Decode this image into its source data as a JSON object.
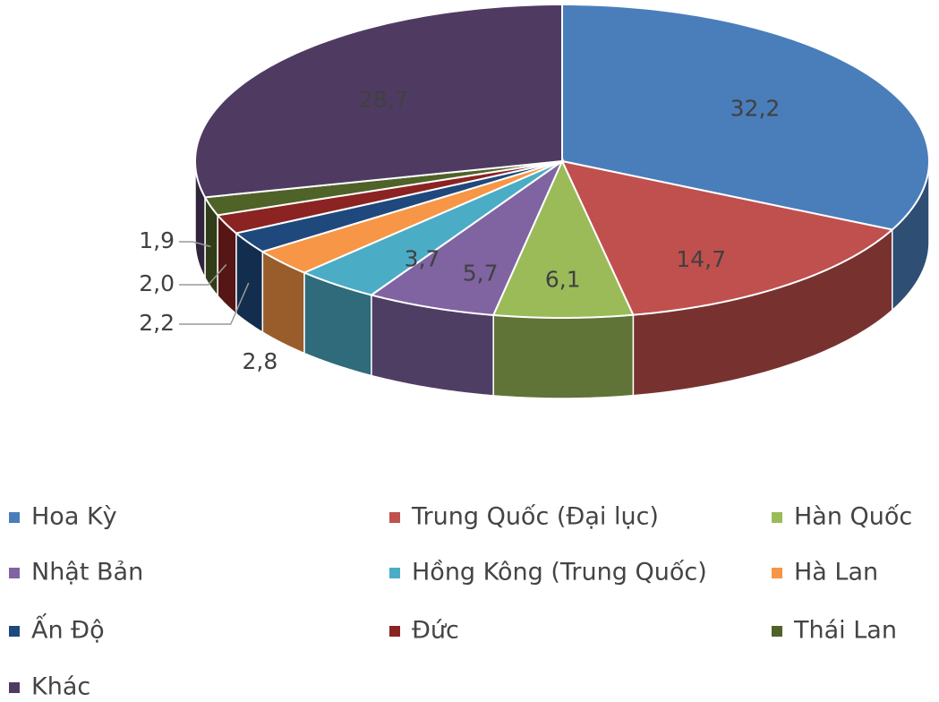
{
  "chart_data": {
    "type": "pie",
    "categories": [
      "Hoa Kỳ",
      "Trung Quốc (Đại lục)",
      "Hàn Quốc",
      "Nhật Bản",
      "Hồng Kông (Trung Quốc)",
      "Hà Lan",
      "Ấn Độ",
      "Đức",
      "Thái Lan",
      "Khác"
    ],
    "values": [
      32.2,
      14.7,
      6.1,
      5.7,
      3.7,
      2.8,
      2.2,
      2.0,
      1.9,
      28.7
    ],
    "value_labels": [
      "32,2",
      "14,7",
      "6,1",
      "5,7",
      "3,7",
      "2,8",
      "2,2",
      "2,0",
      "1,9",
      "28,7"
    ],
    "colors": [
      "#4a7ebb",
      "#c0504d",
      "#9bbb59",
      "#8064a2",
      "#4bacc6",
      "#f79646",
      "#1f497d",
      "#8b2323",
      "#4f6228",
      "#4f3b62"
    ],
    "legend": "bottom"
  }
}
